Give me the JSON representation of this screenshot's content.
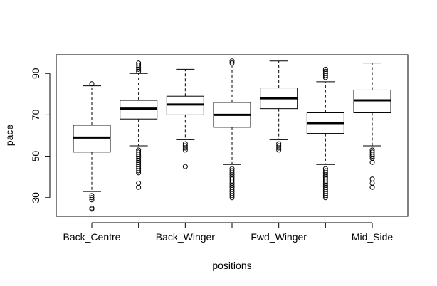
{
  "chart_data": {
    "type": "box",
    "xlabel": "positions",
    "ylabel": "pace",
    "ylim": [
      21,
      99
    ],
    "y_ticks": [
      30,
      50,
      70,
      90
    ],
    "x_tick_labels_shown": [
      "Back_Centre",
      "Back_Winger",
      "Fwd_Winger",
      "Mid_Side"
    ],
    "x_tick_label_index": [
      0,
      2,
      4,
      6
    ],
    "grid": false,
    "legend": "none",
    "boxes": [
      {
        "q1": 52,
        "median": 59,
        "q3": 65,
        "whisker_low": 33,
        "whisker_high": 84,
        "outliers": [
          31,
          30,
          29,
          25,
          24.5,
          85
        ]
      },
      {
        "q1": 68,
        "median": 73,
        "q3": 77,
        "whisker_low": 55,
        "whisker_high": 90,
        "outliers": [
          53,
          52,
          51,
          50,
          49,
          48,
          47,
          46,
          45,
          44,
          43,
          42,
          37,
          35,
          91,
          92,
          93,
          94,
          95
        ]
      },
      {
        "q1": 70,
        "median": 75,
        "q3": 79,
        "whisker_low": 58,
        "whisker_high": 92,
        "outliers": [
          56,
          55,
          54,
          53,
          45
        ]
      },
      {
        "q1": 64,
        "median": 70,
        "q3": 76,
        "whisker_low": 46,
        "whisker_high": 94,
        "outliers": [
          44,
          43,
          42,
          41,
          40,
          39,
          38,
          37,
          36,
          35,
          34,
          33,
          32,
          31,
          30,
          95,
          96
        ]
      },
      {
        "q1": 73,
        "median": 78,
        "q3": 83,
        "whisker_low": 58,
        "whisker_high": 96,
        "outliers": [
          56,
          55,
          54,
          53
        ]
      },
      {
        "q1": 61,
        "median": 66,
        "q3": 71,
        "whisker_low": 46,
        "whisker_high": 86,
        "outliers": [
          44,
          43,
          42,
          41,
          40,
          39,
          38,
          37,
          36,
          35,
          34,
          33,
          32,
          31,
          30,
          88,
          89,
          90,
          91,
          92
        ]
      },
      {
        "q1": 71,
        "median": 77,
        "q3": 82,
        "whisker_low": 55,
        "whisker_high": 95,
        "outliers": [
          53,
          52,
          51,
          50,
          49,
          47,
          39,
          37,
          35
        ]
      }
    ]
  }
}
